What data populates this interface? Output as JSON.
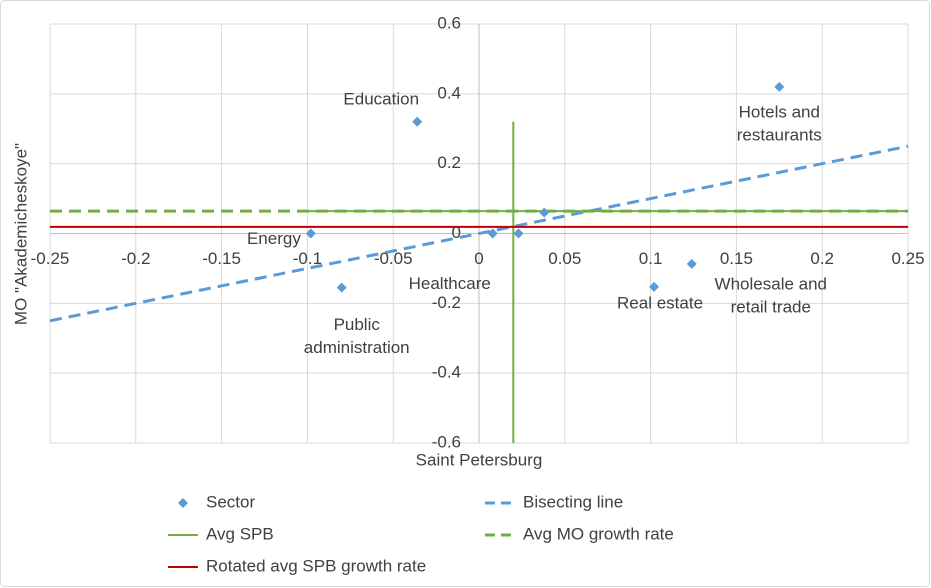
{
  "chart_data": {
    "type": "scatter",
    "x_label": "Saint Petersburg",
    "y_label": "MO \"Akademicheskoye\"",
    "xlim": [
      -0.25,
      0.25
    ],
    "ylim": [
      -0.6,
      0.6
    ],
    "xticks": [
      -0.25,
      -0.2,
      -0.15,
      -0.1,
      -0.05,
      0,
      0.05,
      0.1,
      0.15,
      0.2,
      0.25
    ],
    "yticks": [
      -0.6,
      -0.4,
      -0.2,
      0,
      0.2,
      0.4,
      0.6
    ],
    "grid": true,
    "legend": "bottom",
    "series": [
      {
        "name": "Sector",
        "type": "scatter",
        "color": "#5b9bd5",
        "x": [
          -0.036,
          0.175,
          -0.098,
          -0.08,
          0.008,
          0.023,
          0.038,
          0.102,
          0.124
        ],
        "values": [
          0.32,
          0.42,
          0.0,
          -0.155,
          0.0,
          0.0,
          0.06,
          -0.153,
          -0.087
        ],
        "labels": [
          [
            "Education"
          ],
          [
            "Hotels and",
            "restaurants"
          ],
          [
            "Energy"
          ],
          [
            "Public",
            "administration"
          ],
          [
            "Healthcare"
          ],
          null,
          null,
          [
            "Real estate"
          ],
          [
            "Wholesale and",
            "retail trade"
          ]
        ]
      },
      {
        "name": "Bisecting line",
        "type": "line",
        "dash": true,
        "color": "#5b9bd5",
        "x": [
          -0.25,
          0.25
        ],
        "values": [
          -0.25,
          0.25
        ]
      },
      {
        "name": "Avg SPB",
        "type": "line",
        "dash": false,
        "color": "#70ad47",
        "x": [
          0.02,
          0.02,
          null,
          -0.1,
          0.25
        ],
        "values": [
          0.32,
          -0.6,
          null,
          0.064,
          0.064
        ]
      },
      {
        "name": "Avg MO growth rate",
        "type": "line",
        "dash": true,
        "color": "#70ad47",
        "x": [
          -0.25,
          0.25
        ],
        "values": [
          0.064,
          0.064
        ]
      },
      {
        "name": "Rotated avg SPB growth rate",
        "type": "line",
        "dash": false,
        "color": "#c00000",
        "x": [
          -0.25,
          0.25
        ],
        "values": [
          0.019,
          0.019
        ]
      }
    ]
  }
}
